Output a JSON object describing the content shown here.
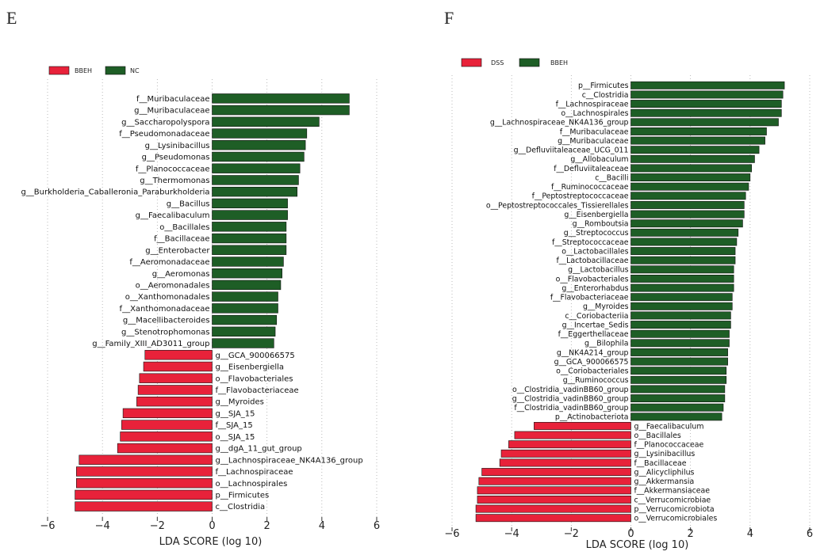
{
  "panels": [
    {
      "letter": "E",
      "legend": [
        {
          "label": "BBEH",
          "color": "#e8223a"
        },
        {
          "label": "NC",
          "color": "#1e5e26"
        }
      ]
    },
    {
      "letter": "F",
      "legend": [
        {
          "label": "DSS",
          "color": "#e8223a"
        },
        {
          "label": "BBEH",
          "color": "#1e5e26"
        }
      ]
    }
  ],
  "chart_data": [
    {
      "type": "bar",
      "orientation": "horizontal",
      "xlabel": "LDA SCORE (log 10)",
      "xlim": [
        -6,
        6
      ],
      "xticks": [
        "−6",
        "−4",
        "−2",
        "0",
        "2",
        "4",
        "6"
      ],
      "grid": "vertical dotted",
      "legend_position": "top-left",
      "series": [
        {
          "name": "NC",
          "color": "#1e5e26",
          "categories": [
            "f__Muribaculaceae",
            "g__Muribaculaceae",
            "g__Saccharopolyspora",
            "f__Pseudomonadaceae",
            "g__Lysinibacillus",
            "g__Pseudomonas",
            "f__Planococcaceae",
            "g__Thermomonas",
            "g__Burkholderia_Caballeronia_Paraburkholderia",
            "g__Bacillus",
            "g__Faecalibaculum",
            "o__Bacillales",
            "f__Bacillaceae",
            "g__Enterobacter",
            "f__Aeromonadaceae",
            "g__Aeromonas",
            "o__Aeromonadales",
            "o__Xanthomonadales",
            "f__Xanthomonadaceae",
            "g__Macellibacteroides",
            "g__Stenotrophomonas",
            "g__Family_XIII_AD3011_group"
          ],
          "values": [
            5.0,
            5.0,
            3.9,
            3.45,
            3.4,
            3.35,
            3.2,
            3.15,
            3.1,
            2.75,
            2.75,
            2.7,
            2.7,
            2.7,
            2.6,
            2.55,
            2.5,
            2.4,
            2.4,
            2.35,
            2.3,
            2.25
          ]
        },
        {
          "name": "BBEH",
          "color": "#e8223a",
          "categories": [
            "g__GCA_900066575",
            "g__Eisenbergiella",
            "o__Flavobacteriales",
            "f__Flavobacteriaceae",
            "g__Myroides",
            "g__SJA_15",
            "f__SJA_15",
            "o__SJA_15",
            "g__dgA_11_gut_group",
            "g__Lachnospiraceae_NK4A136_group",
            "f__Lachnospiraceae",
            "o__Lachnospirales",
            "p__Firmicutes",
            "c__Clostridia"
          ],
          "values": [
            -2.45,
            -2.5,
            -2.65,
            -2.7,
            -2.75,
            -3.25,
            -3.3,
            -3.35,
            -3.45,
            -4.85,
            -4.95,
            -4.95,
            -5.0,
            -5.0
          ]
        }
      ]
    },
    {
      "type": "bar",
      "orientation": "horizontal",
      "xlabel": "LDA SCORE (log 10)",
      "xlim": [
        -6,
        6
      ],
      "xticks": [
        "−6",
        "−4",
        "−2",
        "0",
        "2",
        "4",
        "6"
      ],
      "grid": "vertical dotted",
      "legend_position": "top-left",
      "series": [
        {
          "name": "BBEH",
          "color": "#1e5e26",
          "categories": [
            "p__Firmicutes",
            "c__Clostridia",
            "f__Lachnospiraceae",
            "o__Lachnospirales",
            "g__Lachnospiraceae_NK4A136_group",
            "f__Muribaculaceae",
            "g__Muribaculaceae",
            "g__Defluviitaleaceae_UCG_011",
            "g__Allobaculum",
            "f__Defluviitaleaceae",
            "c__Bacilli",
            "f__Ruminococcaceae",
            "f__Peptostreptococcaceae",
            "o__Peptostreptococcales_Tissierellales",
            "g__Eisenbergiella",
            "g__Romboutsia",
            "g__Streptococcus",
            "f__Streptococcaceae",
            "o__Lactobacillales",
            "f__Lactobacillaceae",
            "g__Lactobacillus",
            "o__Flavobacteriales",
            "g__Enterorhabdus",
            "f__Flavobacteriaceae",
            "g__Myroides",
            "c__Coriobacteriia",
            "g__Incertae_Sedis",
            "f__Eggerthellaceae",
            "g__Bilophila",
            "g__NK4A214_group",
            "g__GCA_900066575",
            "o__Coriobacteriales",
            "g__Ruminococcus",
            "o__Clostridia_vadinBB60_group",
            "g__Clostridia_vadinBB60_group",
            "f__Clostridia_vadinBB60_group",
            "p__Actinobacteriota"
          ],
          "values": [
            5.15,
            5.1,
            5.05,
            5.05,
            4.95,
            4.55,
            4.5,
            4.3,
            4.15,
            4.05,
            4.0,
            3.95,
            3.85,
            3.8,
            3.8,
            3.75,
            3.6,
            3.55,
            3.5,
            3.5,
            3.45,
            3.45,
            3.45,
            3.4,
            3.4,
            3.35,
            3.35,
            3.3,
            3.3,
            3.25,
            3.25,
            3.2,
            3.2,
            3.15,
            3.15,
            3.1,
            3.05
          ]
        },
        {
          "name": "DSS",
          "color": "#e8223a",
          "categories": [
            "g__Faecalibaculum",
            "o__Bacillales",
            "f__Planococcaceae",
            "g__Lysinibacillus",
            "f__Bacillaceae",
            "g__Alicycliphilus",
            "g__Akkermansia",
            "f__Akkermansiaceae",
            "c__Verrucomicrobiae",
            "p__Verrucomicrobiota",
            "o__Verrucomicrobiales"
          ],
          "values": [
            -3.25,
            -3.9,
            -4.1,
            -4.35,
            -4.4,
            -5.0,
            -5.1,
            -5.15,
            -5.15,
            -5.2,
            -5.2
          ]
        }
      ]
    }
  ]
}
